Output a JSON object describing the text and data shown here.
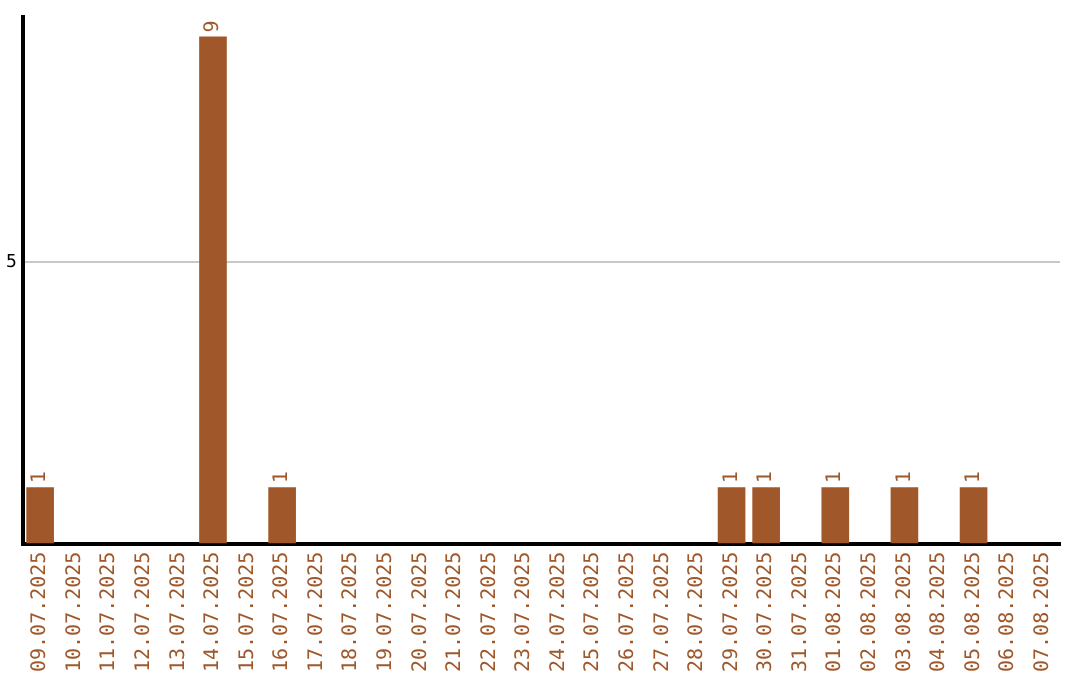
{
  "chart_data": {
    "type": "bar",
    "categories": [
      "09.07.2025",
      "10.07.2025",
      "11.07.2025",
      "12.07.2025",
      "13.07.2025",
      "14.07.2025",
      "15.07.2025",
      "16.07.2025",
      "17.07.2025",
      "18.07.2025",
      "19.07.2025",
      "20.07.2025",
      "21.07.2025",
      "22.07.2025",
      "23.07.2025",
      "24.07.2025",
      "25.07.2025",
      "26.07.2025",
      "27.07.2025",
      "28.07.2025",
      "29.07.2025",
      "30.07.2025",
      "31.07.2025",
      "01.08.2025",
      "02.08.2025",
      "03.08.2025",
      "04.08.2025",
      "05.08.2025",
      "06.08.2025",
      "07.08.2025"
    ],
    "values": [
      1,
      0,
      0,
      0,
      0,
      9,
      0,
      1,
      0,
      0,
      0,
      0,
      0,
      0,
      0,
      0,
      0,
      0,
      0,
      0,
      1,
      1,
      0,
      1,
      0,
      1,
      0,
      1,
      0,
      0
    ],
    "value_labels": [
      "1",
      null,
      null,
      null,
      null,
      "9",
      null,
      "1",
      null,
      null,
      null,
      null,
      null,
      null,
      null,
      null,
      null,
      null,
      null,
      null,
      "1",
      "1",
      null,
      "1",
      null,
      "1",
      null,
      "1",
      null,
      null
    ],
    "color": "#a0582a",
    "ylim": [
      0,
      9.35
    ],
    "yticks": [
      5
    ],
    "grid": "y",
    "legend": false
  }
}
